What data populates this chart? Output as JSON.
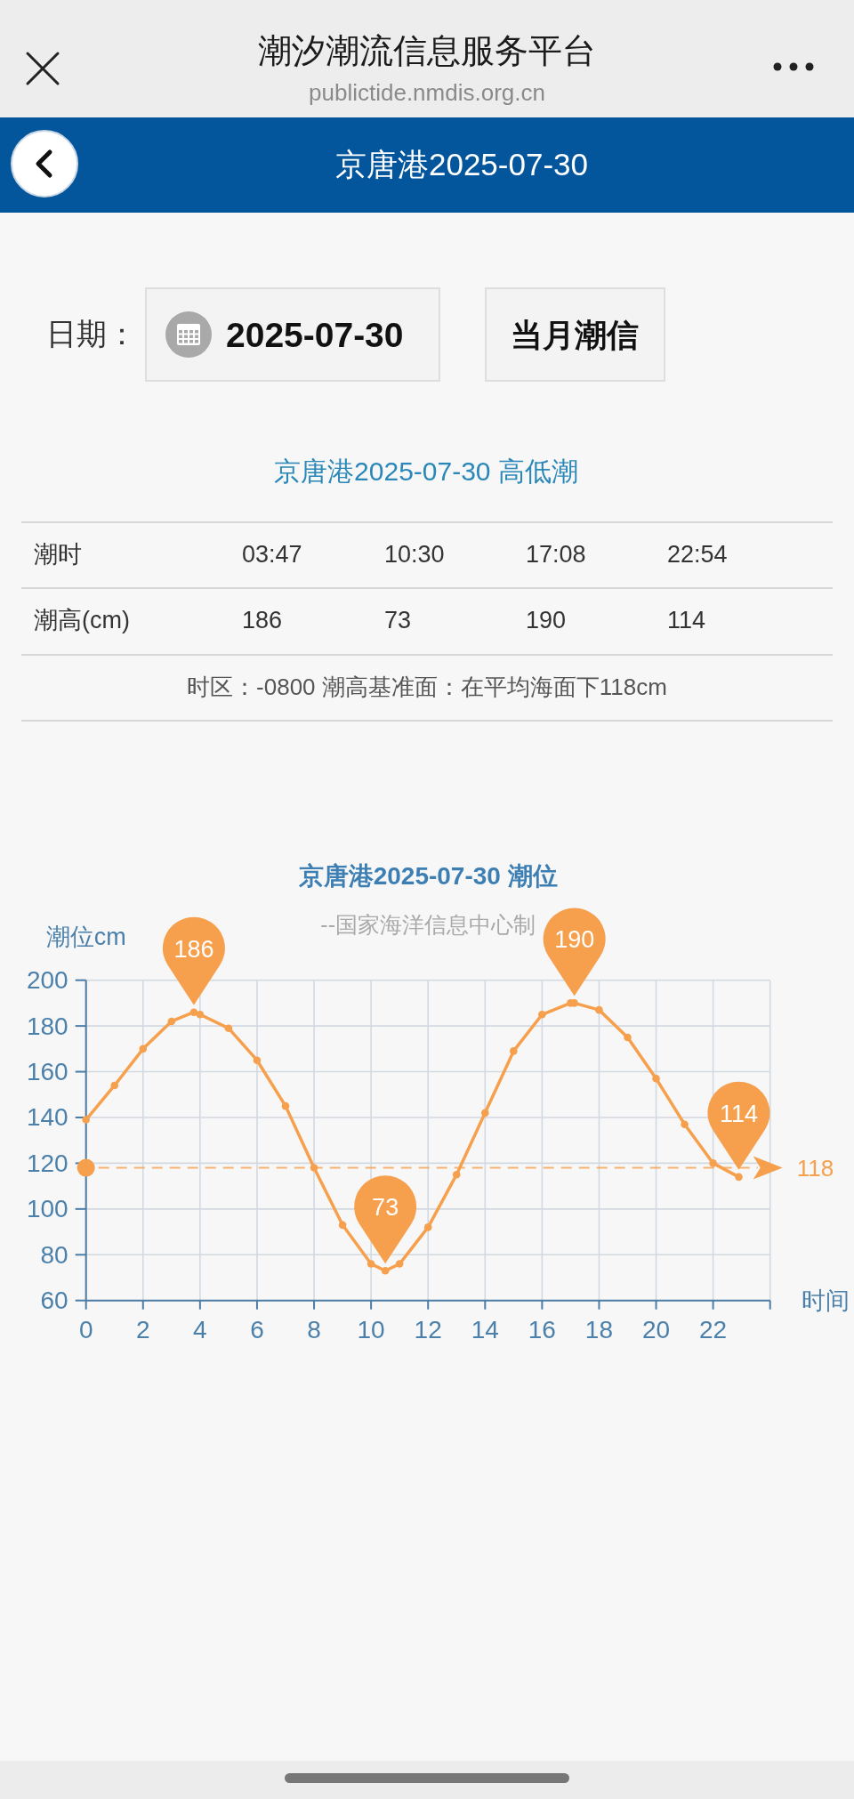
{
  "chart_data": [
    {
      "type": "other",
      "title": "潮汐潮流信息服务平台",
      "subtitle": "publictide.nmdis.org.cn",
      "annotations": [
        "京唐港2025-07-30",
        "日期：",
        "2025-07-30",
        "当月潮信"
      ]
    },
    {
      "type": "other",
      "title": "京唐港2025-07-30 高低潮",
      "annotations": [
        "潮时",
        "03:47",
        "10:30",
        "17:08",
        "22:54",
        "潮高(cm)",
        "186",
        "73",
        "190",
        "114",
        "时区：-0800 潮高基准面：在平均海面下118cm"
      ]
    },
    {
      "type": "line",
      "title": "京唐港2025-07-30 潮位",
      "subtitle": "--国家海洋信息中心制",
      "xlabel": "时间",
      "ylabel": "潮位cm",
      "x": [
        0,
        1,
        2,
        3,
        3.783,
        4,
        5,
        6,
        7,
        8,
        9,
        10,
        10.5,
        11,
        12,
        13,
        14,
        15,
        16,
        17,
        17.133,
        18,
        19,
        20,
        21,
        22,
        22.9
      ],
      "values": [
        139,
        154,
        170,
        182,
        186,
        185,
        179,
        165,
        145,
        118,
        93,
        76,
        73,
        76,
        92,
        115,
        142,
        169,
        185,
        190,
        190,
        187,
        175,
        157,
        137,
        120,
        114
      ],
      "color": "#f6a04d",
      "marker": "circle",
      "line_style": "solid",
      "grid": true,
      "xlim": [
        0,
        24
      ],
      "ylim": [
        60,
        200
      ],
      "xticks": [
        0,
        2,
        4,
        6,
        8,
        10,
        12,
        14,
        16,
        18,
        20,
        22,
        {
          "value": 24,
          "label": null
        }
      ],
      "yticks": [
        60,
        80,
        100,
        120,
        140,
        160,
        180,
        200
      ],
      "ref_lines": [
        {
          "axis": "y",
          "value": 118,
          "label": "118",
          "color": "#f6a04d",
          "line_style": "dashed"
        }
      ],
      "annotations": [
        {
          "text": "186",
          "x": 3.783,
          "y": 186
        },
        {
          "text": "73",
          "x": 10.5,
          "y": 73
        },
        {
          "text": "190",
          "x": 17.133,
          "y": 190
        },
        {
          "text": "114",
          "x": 22.9,
          "y": 114
        }
      ]
    }
  ]
}
